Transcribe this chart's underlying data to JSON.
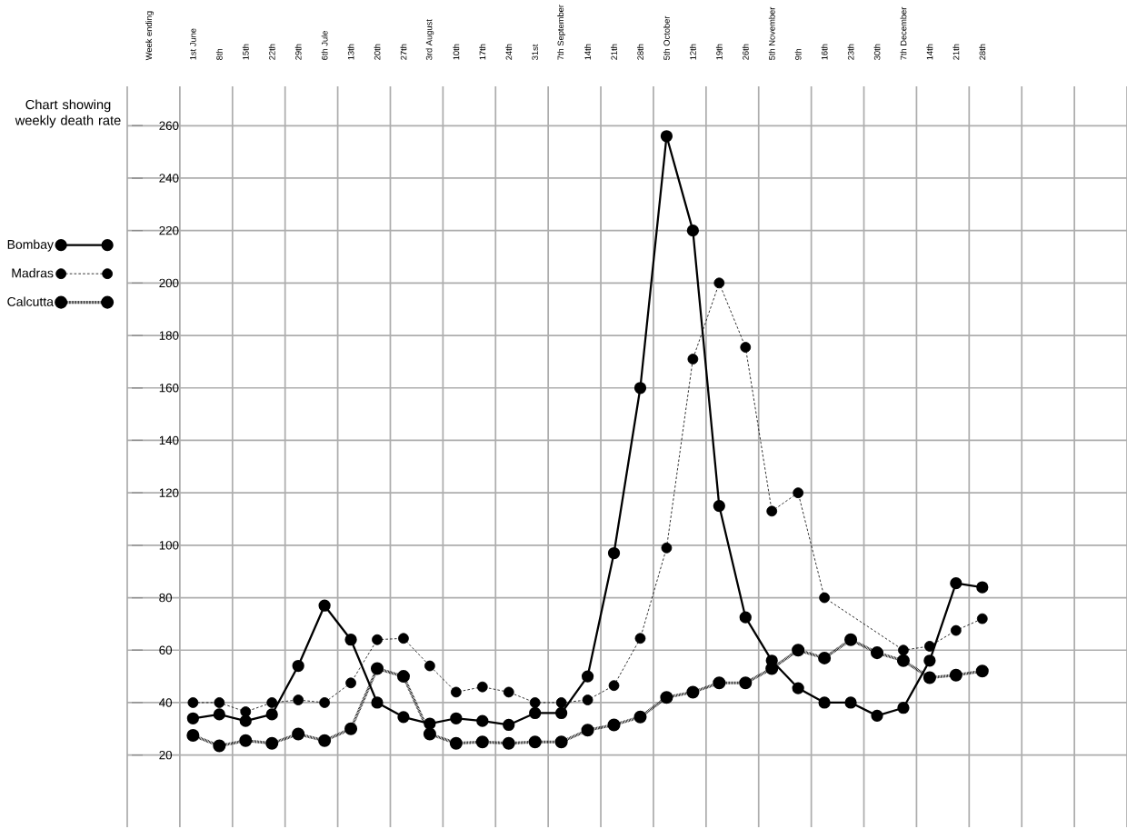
{
  "chart_data": {
    "type": "line",
    "title": "Chart showing weekly death rate",
    "annotations": [
      "Week ending"
    ],
    "categories": [
      "1st June",
      "8th",
      "15th",
      "22th",
      "29th",
      "6th Jule",
      "13th",
      "20th",
      "27th",
      "3rd August",
      "10th",
      "17th",
      "24th",
      "31st",
      "7th September",
      "14th",
      "21th",
      "28th",
      "5th October",
      "12th",
      "19th",
      "26th",
      "5th November",
      "9th",
      "16th",
      "23th",
      "30th",
      "7th December",
      "14th",
      "21th",
      "28th"
    ],
    "series": [
      {
        "name": "Bombay",
        "color": "#000000",
        "line_style": "solid",
        "values": [
          34,
          35.5,
          33,
          35.5,
          54,
          77,
          64,
          40,
          34.5,
          32,
          34,
          33,
          31.5,
          36,
          36,
          50,
          97,
          160,
          256,
          220,
          115,
          72.5,
          56,
          45.5,
          40,
          40,
          35,
          38,
          56,
          85.5,
          84
        ]
      },
      {
        "name": "Madras",
        "color": "#000000",
        "line_style": "dashed",
        "values": [
          40,
          40,
          36.5,
          40,
          41,
          40,
          47.5,
          64,
          64.5,
          54,
          44,
          46,
          44,
          40,
          40,
          41,
          46.5,
          64.5,
          99,
          171,
          200,
          175.5,
          113,
          120,
          80,
          null,
          null,
          60,
          61.5,
          67.5,
          72
        ]
      },
      {
        "name": "Calcutta",
        "color": "#000000",
        "line_style": "dotted",
        "values": [
          27.5,
          23.5,
          25.5,
          24.5,
          28,
          25.5,
          30,
          53,
          50,
          28,
          24.5,
          25,
          24.5,
          25,
          25,
          29.5,
          31.5,
          34.5,
          42,
          44,
          47.5,
          47.5,
          53,
          60,
          57,
          64,
          59,
          56,
          49.5,
          50.5,
          52
        ]
      }
    ],
    "marker": "circle",
    "ylim": [
      -7.5,
      275
    ],
    "yticks": [
      20,
      40,
      60,
      80,
      100,
      120,
      140,
      160,
      180,
      200,
      220,
      240,
      260
    ],
    "grid": true,
    "legend": "left"
  }
}
